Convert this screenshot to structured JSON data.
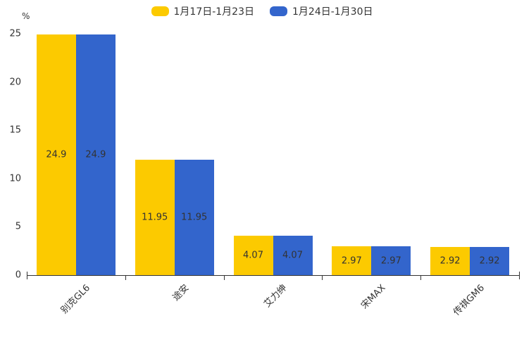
{
  "chart_data": {
    "type": "bar",
    "title": "",
    "categories": [
      "别克GL6",
      "途安",
      "艾力绅",
      "宋MAX",
      "传祺GM6"
    ],
    "series": [
      {
        "name": "1月17日-1月23日",
        "color": "#FCCA00",
        "values": [
          24.9,
          11.95,
          4.07,
          2.97,
          2.92
        ]
      },
      {
        "name": "1月24日-1月30日",
        "color": "#3365CC",
        "values": [
          24.9,
          11.95,
          4.07,
          2.97,
          2.92
        ]
      }
    ],
    "value_labels": [
      [
        "24.9",
        "11.95",
        "4.07",
        "2.97",
        "2.92"
      ],
      [
        "24.9",
        "11.95",
        "4.07",
        "2.97",
        "2.92"
      ]
    ],
    "xlabel": "",
    "ylabel": "%",
    "ylim": [
      0,
      25
    ],
    "yticks": [
      "0",
      "5",
      "10",
      "15",
      "20",
      "25"
    ],
    "grid": false,
    "legend_position": "top",
    "label_position": "inside-center",
    "text_color": "#333333",
    "axis_color": "#333333",
    "background_color": "#ffffff"
  }
}
